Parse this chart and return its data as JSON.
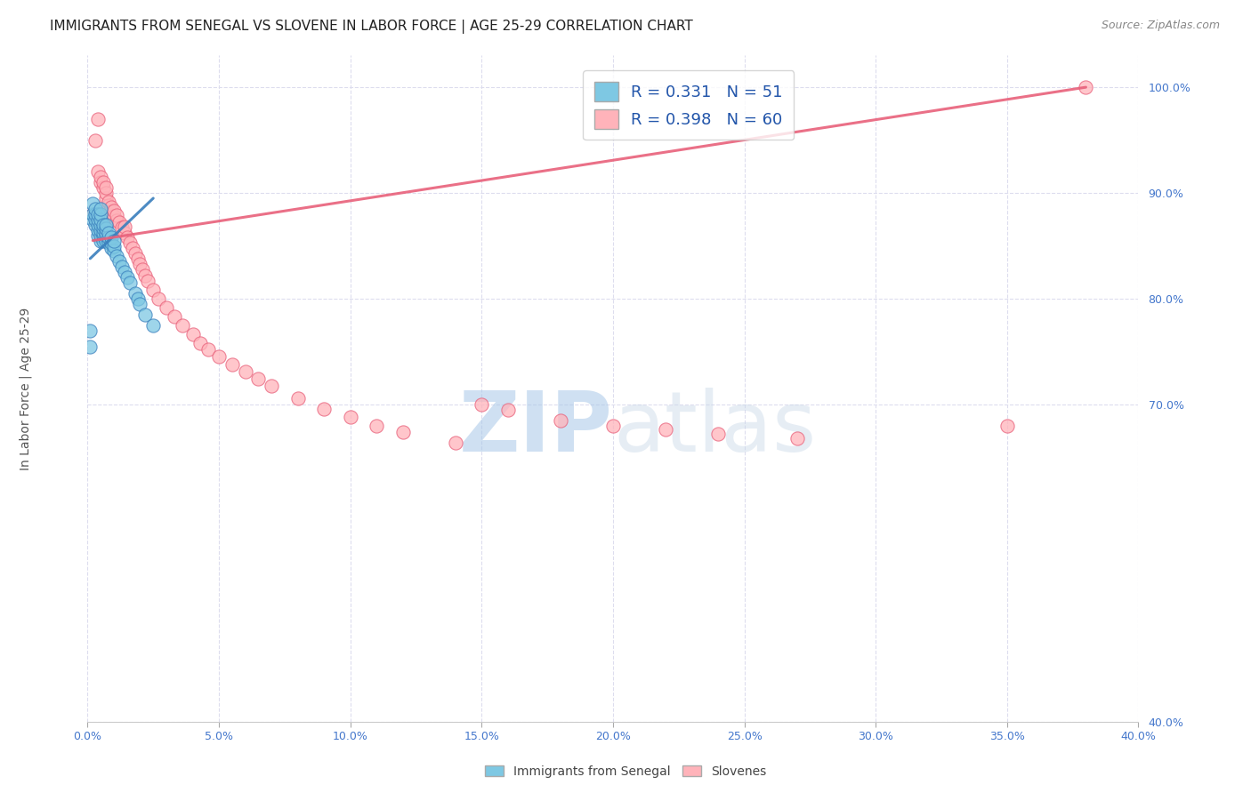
{
  "title": "IMMIGRANTS FROM SENEGAL VS SLOVENE IN LABOR FORCE | AGE 25-29 CORRELATION CHART",
  "source_text": "Source: ZipAtlas.com",
  "ylabel": "In Labor Force | Age 25-29",
  "xlim": [
    0.0,
    0.4
  ],
  "ylim": [
    0.4,
    1.03
  ],
  "xtick_labels": [
    "0.0%",
    "5.0%",
    "10.0%",
    "15.0%",
    "20.0%",
    "25.0%",
    "30.0%",
    "35.0%",
    "40.0%"
  ],
  "xtick_vals": [
    0.0,
    0.05,
    0.1,
    0.15,
    0.2,
    0.25,
    0.3,
    0.35,
    0.4
  ],
  "ytick_labels": [
    "40.0%",
    "70.0%",
    "80.0%",
    "90.0%",
    "100.0%"
  ],
  "ytick_vals": [
    0.4,
    0.7,
    0.8,
    0.9,
    1.0
  ],
  "blue_R": 0.331,
  "blue_N": 51,
  "pink_R": 0.398,
  "pink_N": 60,
  "blue_color": "#7EC8E3",
  "pink_color": "#FFB3BA",
  "blue_line_color": "#3A7FBD",
  "pink_line_color": "#E8607A",
  "legend_label_blue": "Immigrants from Senegal",
  "legend_label_pink": "Slovenes",
  "watermark_zip": "ZIP",
  "watermark_atlas": "atlas",
  "title_fontsize": 11,
  "axis_label_fontsize": 10,
  "tick_fontsize": 9,
  "blue_scatter_x": [
    0.001,
    0.001,
    0.002,
    0.002,
    0.002,
    0.003,
    0.003,
    0.003,
    0.003,
    0.004,
    0.004,
    0.004,
    0.004,
    0.004,
    0.005,
    0.005,
    0.005,
    0.005,
    0.005,
    0.005,
    0.005,
    0.006,
    0.006,
    0.006,
    0.006,
    0.006,
    0.007,
    0.007,
    0.007,
    0.007,
    0.007,
    0.008,
    0.008,
    0.008,
    0.009,
    0.009,
    0.009,
    0.01,
    0.01,
    0.01,
    0.011,
    0.012,
    0.013,
    0.014,
    0.015,
    0.016,
    0.018,
    0.019,
    0.02,
    0.022,
    0.025
  ],
  "blue_scatter_y": [
    0.755,
    0.77,
    0.875,
    0.88,
    0.89,
    0.87,
    0.875,
    0.88,
    0.885,
    0.86,
    0.865,
    0.87,
    0.875,
    0.88,
    0.855,
    0.86,
    0.865,
    0.87,
    0.875,
    0.88,
    0.885,
    0.855,
    0.86,
    0.862,
    0.866,
    0.87,
    0.855,
    0.86,
    0.862,
    0.866,
    0.87,
    0.853,
    0.858,
    0.862,
    0.848,
    0.853,
    0.858,
    0.845,
    0.85,
    0.855,
    0.84,
    0.835,
    0.83,
    0.825,
    0.82,
    0.815,
    0.805,
    0.8,
    0.795,
    0.785,
    0.775
  ],
  "pink_scatter_x": [
    0.002,
    0.003,
    0.004,
    0.004,
    0.005,
    0.005,
    0.006,
    0.006,
    0.007,
    0.007,
    0.007,
    0.008,
    0.008,
    0.009,
    0.009,
    0.01,
    0.01,
    0.011,
    0.011,
    0.012,
    0.013,
    0.014,
    0.014,
    0.015,
    0.016,
    0.017,
    0.018,
    0.019,
    0.02,
    0.021,
    0.022,
    0.023,
    0.025,
    0.027,
    0.03,
    0.033,
    0.036,
    0.04,
    0.043,
    0.046,
    0.05,
    0.055,
    0.06,
    0.065,
    0.07,
    0.08,
    0.09,
    0.1,
    0.11,
    0.12,
    0.14,
    0.15,
    0.16,
    0.18,
    0.2,
    0.22,
    0.24,
    0.27,
    0.35,
    0.38
  ],
  "pink_scatter_y": [
    0.88,
    0.95,
    0.97,
    0.92,
    0.91,
    0.915,
    0.905,
    0.91,
    0.895,
    0.9,
    0.905,
    0.888,
    0.892,
    0.882,
    0.887,
    0.878,
    0.883,
    0.874,
    0.879,
    0.872,
    0.867,
    0.862,
    0.868,
    0.858,
    0.853,
    0.848,
    0.843,
    0.838,
    0.833,
    0.828,
    0.822,
    0.817,
    0.808,
    0.8,
    0.792,
    0.783,
    0.775,
    0.766,
    0.758,
    0.752,
    0.745,
    0.738,
    0.731,
    0.724,
    0.718,
    0.706,
    0.696,
    0.688,
    0.68,
    0.674,
    0.664,
    0.7,
    0.695,
    0.685,
    0.68,
    0.676,
    0.672,
    0.668,
    0.68,
    1.0
  ],
  "blue_line_x": [
    0.001,
    0.025
  ],
  "blue_line_y": [
    0.838,
    0.895
  ],
  "pink_line_x": [
    0.002,
    0.38
  ],
  "pink_line_y": [
    0.855,
    1.0
  ]
}
